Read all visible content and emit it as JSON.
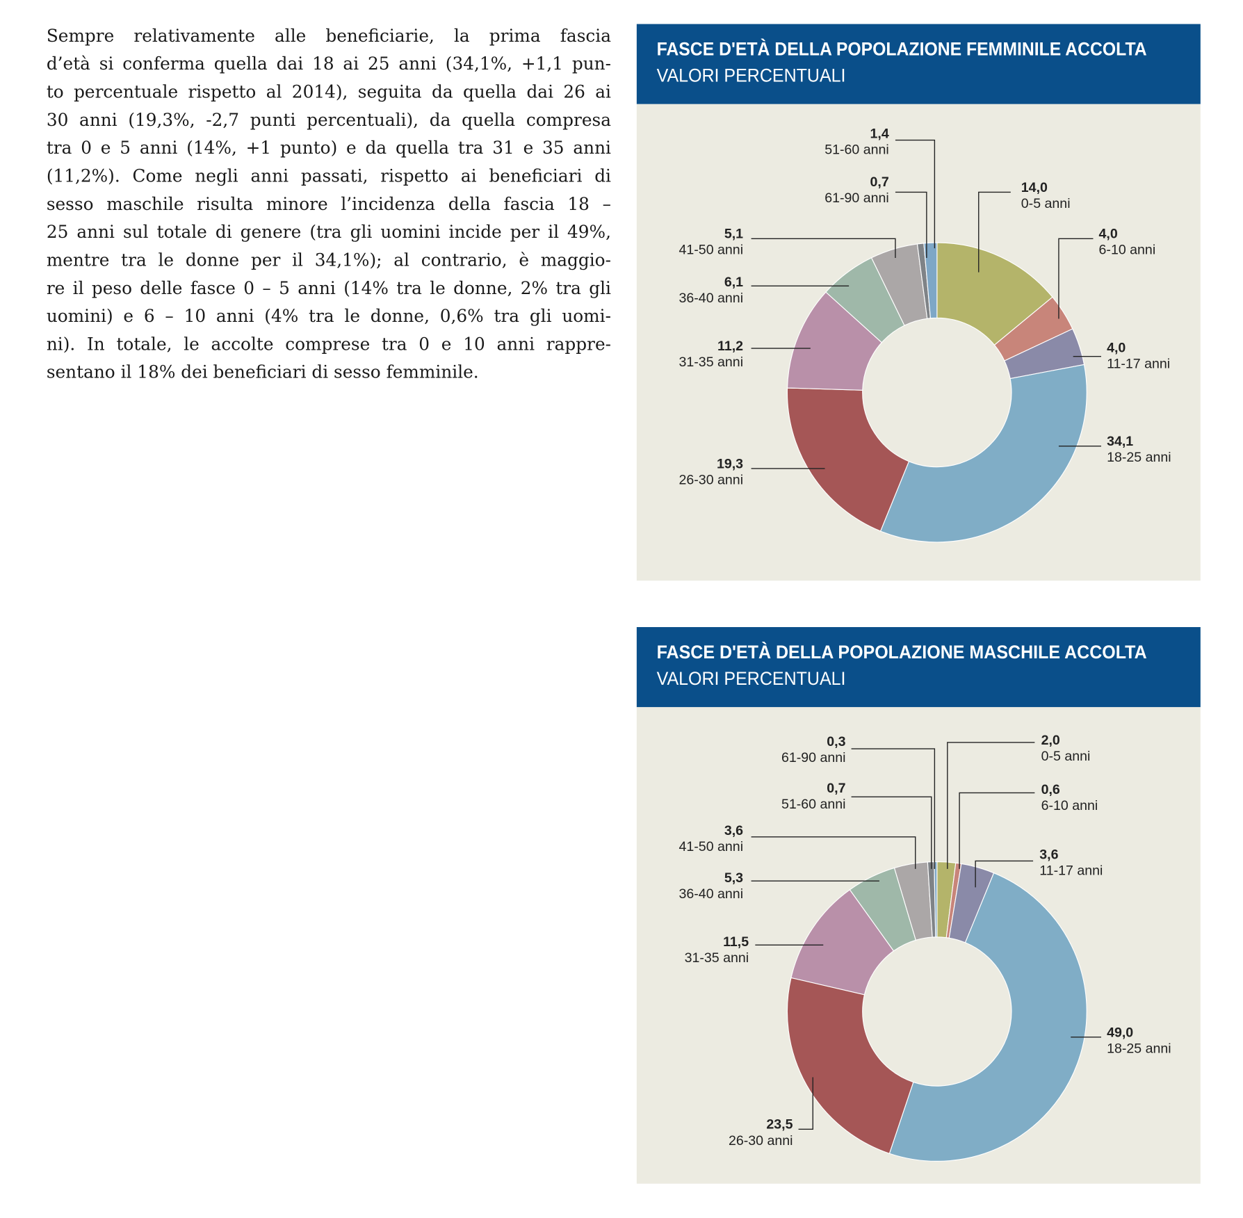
{
  "text": {
    "lines": [
      "Sempre relativamente alle beneficiarie, la prima fascia",
      "d’età si conferma quella dai 18 ai 25 anni (34,1%, +1,1 pun-",
      "to percentuale rispetto al 2014), seguita da quella dai 26 ai",
      "30 anni (19,3%, -2,7 punti percentuali), da quella compresa",
      "tra 0 e 5 anni (14%, +1 punto) e da quella tra 31 e 35 anni",
      "(11,2%). Come negli anni passati, rispetto ai beneficiari di",
      "sesso maschile risulta minore l’incidenza della fascia 18 –",
      "25 anni sul totale di genere (tra gli uomini incide per il 49%,",
      "mentre tra le donne per il 34,1%); al contrario, è maggio-",
      "re il peso delle fasce 0 – 5 anni (14% tra le donne, 2% tra gli",
      "uomini) e 6 – 10 anni (4% tra le donne, 0,6% tra gli uomi-",
      "ni). In totale, le accolte comprese tra 0 e 10 anni rappre-",
      "sentano il 18% dei beneficiari di sesso femminile."
    ]
  },
  "chart_data": [
    {
      "type": "donut",
      "title": "FASCE D'ETÀ DELLA POPOLAZIONE FEMMINILE ACCOLTA",
      "subtitle": "VALORI PERCENTUALI",
      "categories": [
        "0-5 anni",
        "6-10 anni",
        "11-17 anni",
        "18-25 anni",
        "26-30 anni",
        "31-35 anni",
        "36-40 anni",
        "41-50 anni",
        "61-90 anni",
        "51-60 anni"
      ],
      "values": [
        14.0,
        4.0,
        4.0,
        34.1,
        19.3,
        11.2,
        6.1,
        5.1,
        0.7,
        1.4
      ],
      "value_labels": [
        "14,0",
        "4,0",
        "4,0",
        "34,1",
        "19,3",
        "11,2",
        "6,1",
        "5,1",
        "0,7",
        "1,4"
      ],
      "colors": [
        "#b4b46a",
        "#c8857a",
        "#8a8aa8",
        "#80adc6",
        "#a55656",
        "#b990a9",
        "#9fb8a9",
        "#aba7a7",
        "#7f8387",
        "#7ea7c6"
      ]
    },
    {
      "type": "donut",
      "title": "FASCE D'ETÀ DELLA POPOLAZIONE MASCHILE  ACCOLTA",
      "subtitle": "VALORI PERCENTUALI",
      "categories": [
        "0-5 anni",
        "6-10 anni",
        "11-17 anni",
        "18-25 anni",
        "26-30 anni",
        "31-35 anni",
        "36-40 anni",
        "41-50 anni",
        "51-60 anni",
        "61-90 anni"
      ],
      "values": [
        2.0,
        0.6,
        3.6,
        49.0,
        23.5,
        11.5,
        5.3,
        3.6,
        0.7,
        0.3
      ],
      "value_labels": [
        "2,0",
        "0,6",
        "3,6",
        "49,0",
        "23,5",
        "11,5",
        "5,3",
        "3,6",
        "0,7",
        "0,3"
      ],
      "colors": [
        "#b4b46a",
        "#c8857a",
        "#8a8aa8",
        "#80adc6",
        "#a55656",
        "#b990a9",
        "#9fb8a9",
        "#aba7a7",
        "#7f8387",
        "#7ea7c6"
      ]
    }
  ]
}
